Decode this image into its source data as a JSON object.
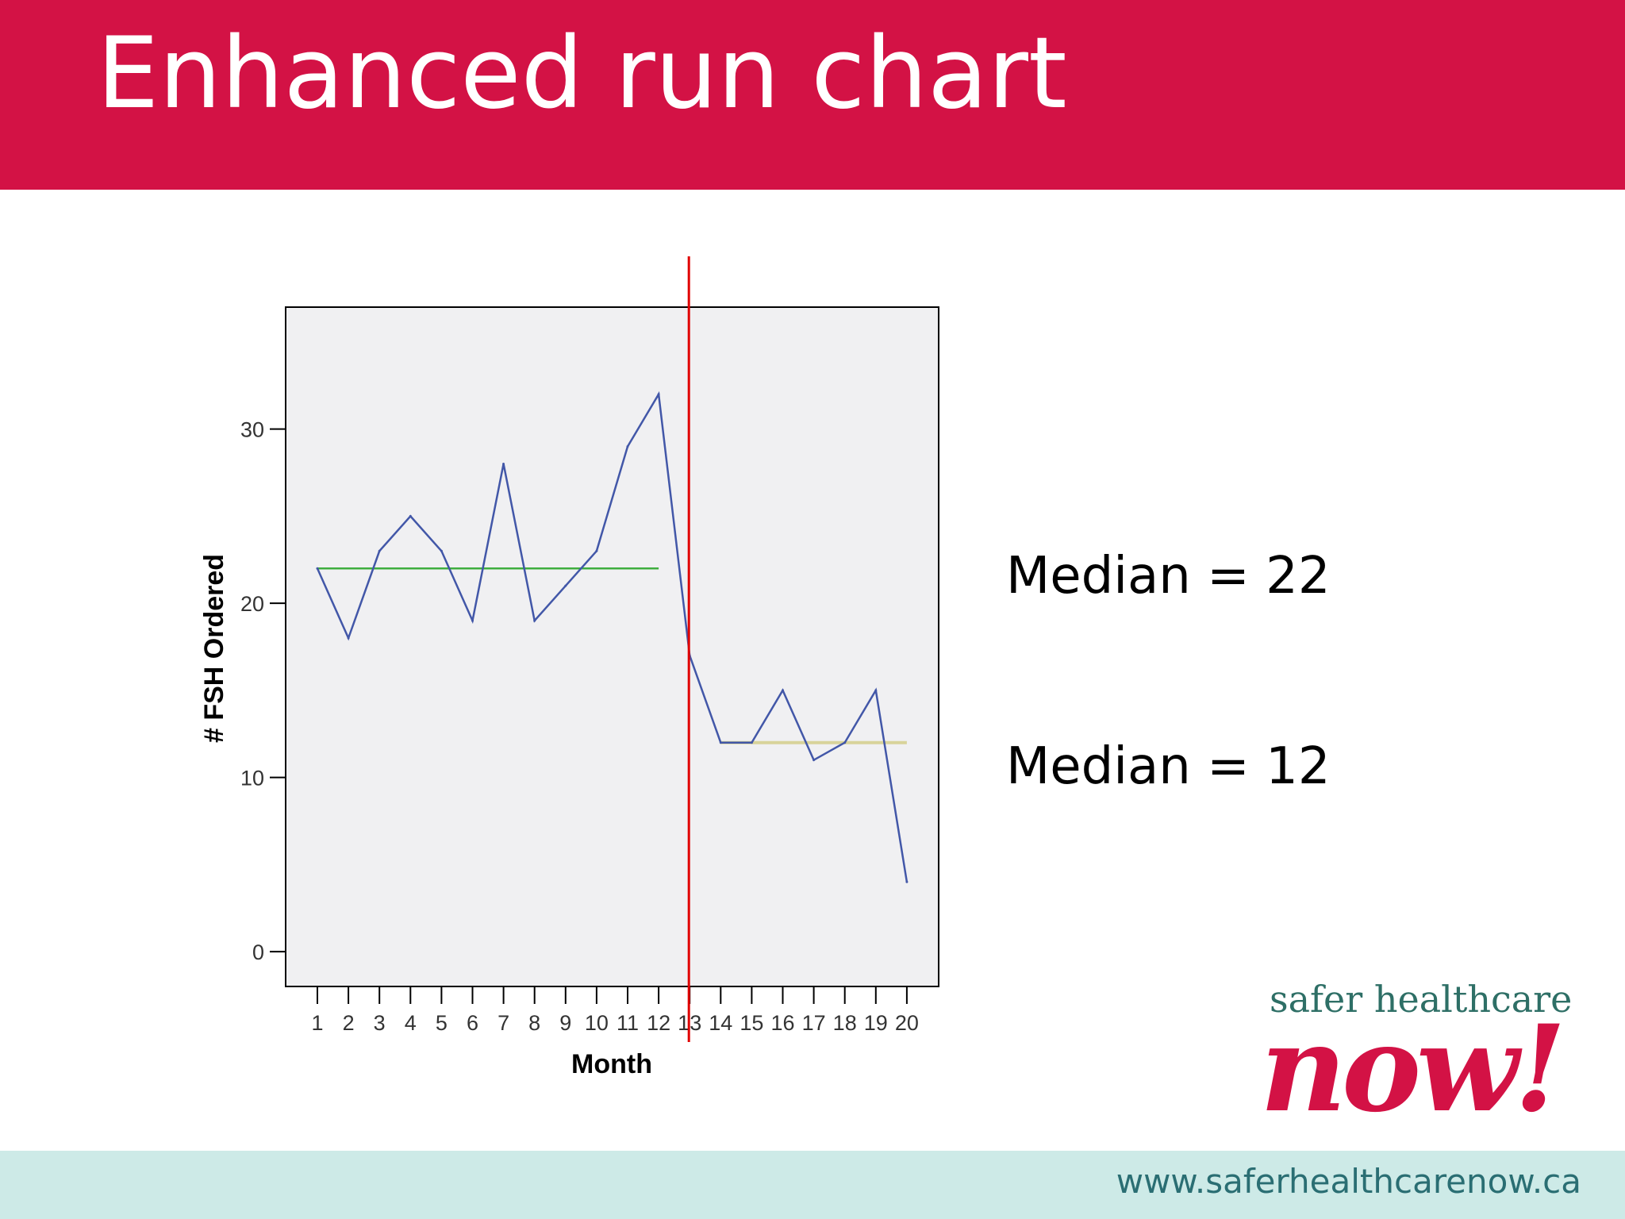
{
  "slide": {
    "title": "Enhanced run chart",
    "annotations": [
      "Median = 22",
      "Median = 12"
    ],
    "footer_url": "www.saferhealthcarenow.ca",
    "logo": {
      "line1": "safer healthcare",
      "line2": "now!"
    }
  },
  "colors": {
    "header": "#d31245",
    "footer": "#cdeae7",
    "series": "#4257a8",
    "median1": "#3fae3f",
    "median2": "#d8d39a",
    "divider": "#e00000",
    "plot_bg": "#f0f0f2"
  },
  "chart_data": {
    "type": "line",
    "xlabel": "Month",
    "ylabel": "# FSH Ordered",
    "x": [
      1,
      2,
      3,
      4,
      5,
      6,
      7,
      8,
      9,
      10,
      11,
      12,
      13,
      14,
      15,
      16,
      17,
      18,
      19,
      20
    ],
    "values": [
      22,
      18,
      23,
      25,
      23,
      19,
      28,
      19,
      21,
      23,
      29,
      32,
      17,
      12,
      12,
      15,
      11,
      12,
      15,
      4
    ],
    "ylim": [
      -2,
      37
    ],
    "yticks": [
      0,
      10,
      20,
      30
    ],
    "xtick_labels": [
      "1",
      "2",
      "3",
      "4",
      "5",
      "6",
      "7",
      "8",
      "9",
      "10",
      "11",
      "12",
      "13",
      "14",
      "15",
      "16",
      "17",
      "18",
      "19",
      "20"
    ],
    "ytick_labels": [
      "0",
      "10",
      "20",
      "30"
    ],
    "medians": [
      {
        "value": 22,
        "from": 1,
        "to": 12
      },
      {
        "value": 12,
        "from": 14,
        "to": 20
      }
    ],
    "divider_x": 13,
    "grid": false
  }
}
